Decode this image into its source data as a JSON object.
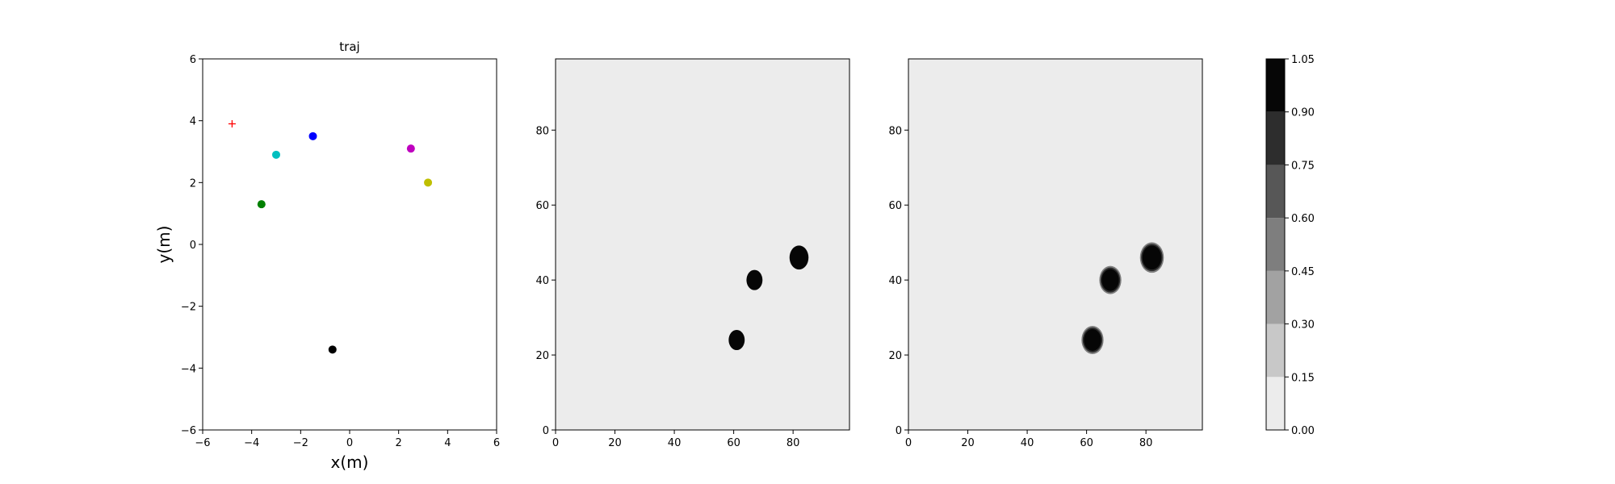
{
  "chart_data": [
    {
      "type": "scatter",
      "title": "traj",
      "xlabel": "x(m)",
      "ylabel": "y(m)",
      "xlim": [
        -6,
        6
      ],
      "ylim": [
        -6,
        6
      ],
      "xticks": [
        -6,
        -4,
        -2,
        0,
        2,
        4,
        6
      ],
      "yticks": [
        -6,
        -4,
        -2,
        0,
        2,
        4,
        6
      ],
      "xtick_labels": [
        "−6",
        "−4",
        "−2",
        "0",
        "2",
        "4",
        "6"
      ],
      "ytick_labels": [
        "−6",
        "−4",
        "−2",
        "0",
        "2",
        "4",
        "6"
      ],
      "grid": false,
      "points": [
        {
          "x": -4.8,
          "y": 3.9,
          "color": "#ff0000",
          "marker": "plus"
        },
        {
          "x": -1.5,
          "y": 3.5,
          "color": "#0000ff",
          "marker": "circle"
        },
        {
          "x": -3.0,
          "y": 2.9,
          "color": "#00bfbf",
          "marker": "circle"
        },
        {
          "x": -3.6,
          "y": 1.3,
          "color": "#008000",
          "marker": "circle"
        },
        {
          "x": 2.5,
          "y": 3.1,
          "color": "#bf00bf",
          "marker": "circle"
        },
        {
          "x": 3.2,
          "y": 2.0,
          "color": "#bfbf00",
          "marker": "circle"
        },
        {
          "x": -0.7,
          "y": -3.4,
          "color": "#000000",
          "marker": "circle"
        }
      ]
    },
    {
      "type": "heatmap",
      "title": "",
      "xlim": [
        0,
        99
      ],
      "ylim": [
        0,
        99
      ],
      "xticks": [
        0,
        20,
        40,
        60,
        80
      ],
      "yticks": [
        0,
        20,
        40,
        60,
        80
      ],
      "background_level": 0.05,
      "edge": "hard",
      "blobs": [
        {
          "x": 61,
          "y": 24,
          "r": 2.7,
          "level": 1.0
        },
        {
          "x": 67,
          "y": 40,
          "r": 2.7,
          "level": 1.0
        },
        {
          "x": 82,
          "y": 46,
          "r": 3.2,
          "level": 1.0
        }
      ]
    },
    {
      "type": "heatmap",
      "title": "",
      "xlim": [
        0,
        99
      ],
      "ylim": [
        0,
        99
      ],
      "xticks": [
        0,
        20,
        40,
        60,
        80
      ],
      "yticks": [
        0,
        20,
        40,
        60,
        80
      ],
      "background_level": 0.05,
      "edge": "soft",
      "blobs": [
        {
          "x": 62,
          "y": 24,
          "r": 2.9,
          "level": 1.0
        },
        {
          "x": 68,
          "y": 40,
          "r": 2.9,
          "level": 1.0
        },
        {
          "x": 82,
          "y": 46,
          "r": 3.2,
          "level": 1.0
        }
      ]
    }
  ],
  "colorbar": {
    "levels": [
      0.0,
      0.15,
      0.3,
      0.45,
      0.6,
      0.75,
      0.9,
      1.05
    ],
    "tick_labels": [
      "0.00",
      "0.15",
      "0.30",
      "0.45",
      "0.60",
      "0.75",
      "0.90",
      "1.05"
    ],
    "colors": [
      "#ececec",
      "#c8c8c8",
      "#a2a2a2",
      "#7e7e7e",
      "#575757",
      "#2d2d2d",
      "#060606"
    ]
  }
}
